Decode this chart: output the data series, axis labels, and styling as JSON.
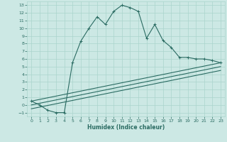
{
  "xlabel": "Humidex (Indice chaleur)",
  "bg_color": "#cce8e4",
  "grid_color": "#aad4cc",
  "line_color": "#2a6b62",
  "xlim": [
    -0.5,
    23.5
  ],
  "ylim": [
    -1.5,
    13.5
  ],
  "xticks": [
    0,
    1,
    2,
    3,
    4,
    5,
    6,
    7,
    8,
    9,
    10,
    11,
    12,
    13,
    14,
    15,
    16,
    17,
    18,
    19,
    20,
    21,
    22,
    23
  ],
  "yticks": [
    -1,
    0,
    1,
    2,
    3,
    4,
    5,
    6,
    7,
    8,
    9,
    10,
    11,
    12,
    13
  ],
  "line1_x": [
    0,
    1,
    2,
    3,
    4,
    5,
    6,
    7,
    8,
    9,
    10,
    11,
    12,
    13,
    14,
    15,
    16,
    17,
    18,
    19,
    20,
    21,
    22,
    23
  ],
  "line1_y": [
    0.5,
    0.0,
    -0.7,
    -1.0,
    -1.0,
    5.5,
    8.3,
    10.0,
    11.5,
    10.5,
    12.2,
    13.0,
    12.7,
    12.2,
    8.7,
    10.5,
    8.4,
    7.5,
    6.2,
    6.2,
    6.0,
    6.0,
    5.8,
    5.5
  ],
  "line2_x": [
    0,
    23
  ],
  "line2_y": [
    0.5,
    5.5
  ],
  "line3_x": [
    0,
    23
  ],
  "line3_y": [
    0.0,
    5.0
  ],
  "line4_x": [
    0,
    23
  ],
  "line4_y": [
    -0.5,
    4.5
  ]
}
